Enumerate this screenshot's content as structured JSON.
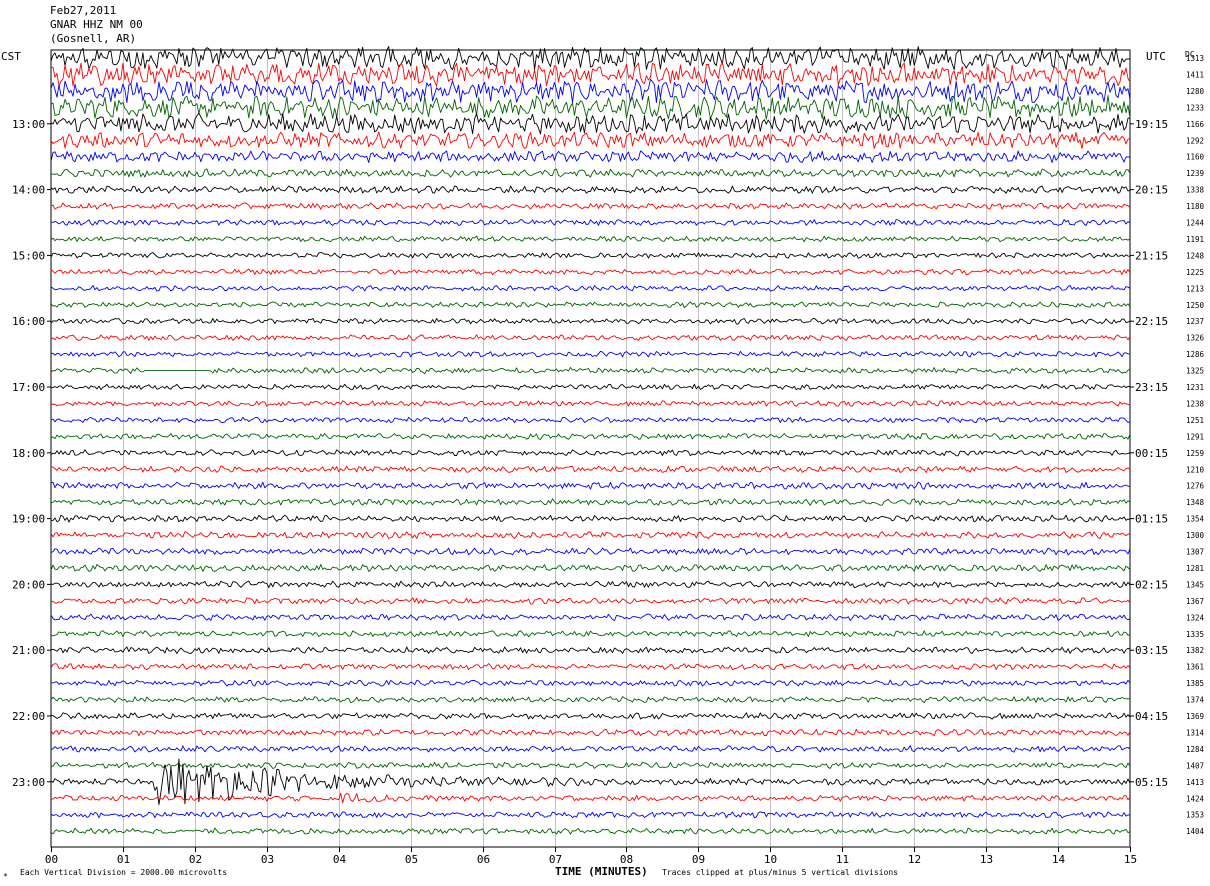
{
  "header": {
    "date": "Feb27,2011",
    "station": "GNAR HHZ NM 00",
    "location": "(Gosnell, AR)"
  },
  "left_axis_title": "CST",
  "right_axis_title": "UTC",
  "dc_title": "DC",
  "footer": {
    "scale": "Each Vertical Division = 2000.00 microvolts",
    "xlabel": "TIME (MINUTES)",
    "clip": "Traces clipped at plus/minus 5 vertical divisions"
  },
  "colors": {
    "cycle": [
      "#000000",
      "#ff0000",
      "#0000ff",
      "#006400"
    ],
    "grid": "#000000"
  },
  "chart_data": {
    "type": "line",
    "subtype": "helicorder",
    "x_ticks": [
      "00",
      "01",
      "02",
      "03",
      "04",
      "05",
      "06",
      "07",
      "08",
      "09",
      "10",
      "11",
      "12",
      "13",
      "14",
      "15"
    ],
    "xlim": [
      0,
      15
    ],
    "left_labels": [
      {
        "row": 4,
        "text": "13:00"
      },
      {
        "row": 8,
        "text": "14:00"
      },
      {
        "row": 12,
        "text": "15:00"
      },
      {
        "row": 16,
        "text": "16:00"
      },
      {
        "row": 20,
        "text": "17:00"
      },
      {
        "row": 24,
        "text": "18:00"
      },
      {
        "row": 28,
        "text": "19:00"
      },
      {
        "row": 32,
        "text": "20:00"
      },
      {
        "row": 36,
        "text": "21:00"
      },
      {
        "row": 40,
        "text": "22:00"
      },
      {
        "row": 44,
        "text": "23:00"
      }
    ],
    "right_labels": [
      {
        "row": 4,
        "text": "19:15"
      },
      {
        "row": 8,
        "text": "20:15"
      },
      {
        "row": 12,
        "text": "21:15"
      },
      {
        "row": 16,
        "text": "22:15"
      },
      {
        "row": 20,
        "text": "23:15"
      },
      {
        "row": 24,
        "text": "00:15"
      },
      {
        "row": 28,
        "text": "01:15"
      },
      {
        "row": 32,
        "text": "02:15"
      },
      {
        "row": 36,
        "text": "03:15"
      },
      {
        "row": 40,
        "text": "04:15"
      },
      {
        "row": 44,
        "text": "05:15"
      }
    ],
    "dc_offsets": [
      1313,
      1411,
      1280,
      1233,
      1166,
      1292,
      1160,
      1239,
      1338,
      1180,
      1244,
      1191,
      1248,
      1225,
      1213,
      1250,
      1237,
      1326,
      1286,
      1325,
      1231,
      1238,
      1251,
      1291,
      1259,
      1210,
      1276,
      1348,
      1354,
      1300,
      1307,
      1281,
      1345,
      1367,
      1324,
      1335,
      1382,
      1361,
      1385,
      1374,
      1369,
      1314,
      1284,
      1407,
      1413,
      1424,
      1353,
      1404
    ],
    "row_amplitudes": [
      5,
      5,
      5,
      5,
      4.5,
      3.5,
      2.5,
      1.8,
      1.6,
      1.4,
      1.3,
      1.2,
      1.2,
      1.2,
      1.2,
      1.2,
      1.2,
      1.2,
      1.2,
      1.3,
      1.2,
      1.2,
      1.2,
      1.3,
      1.3,
      1.4,
      1.5,
      1.4,
      1.5,
      1.5,
      1.5,
      1.5,
      1.4,
      1.4,
      1.4,
      1.3,
      1.4,
      1.3,
      1.3,
      1.3,
      1.4,
      1.4,
      1.4,
      1.3,
      1.4,
      1.3,
      1.3,
      1.3
    ],
    "events": [
      {
        "row": 44,
        "start_min": 1.4,
        "peak_amplitude": 12,
        "duration_min": 6
      },
      {
        "row": 45,
        "start_min": 4.0,
        "peak_amplitude": 3,
        "duration_min": 1
      }
    ],
    "gap": {
      "row": 19,
      "start_min": 1.3,
      "end_min": 2.2
    }
  }
}
